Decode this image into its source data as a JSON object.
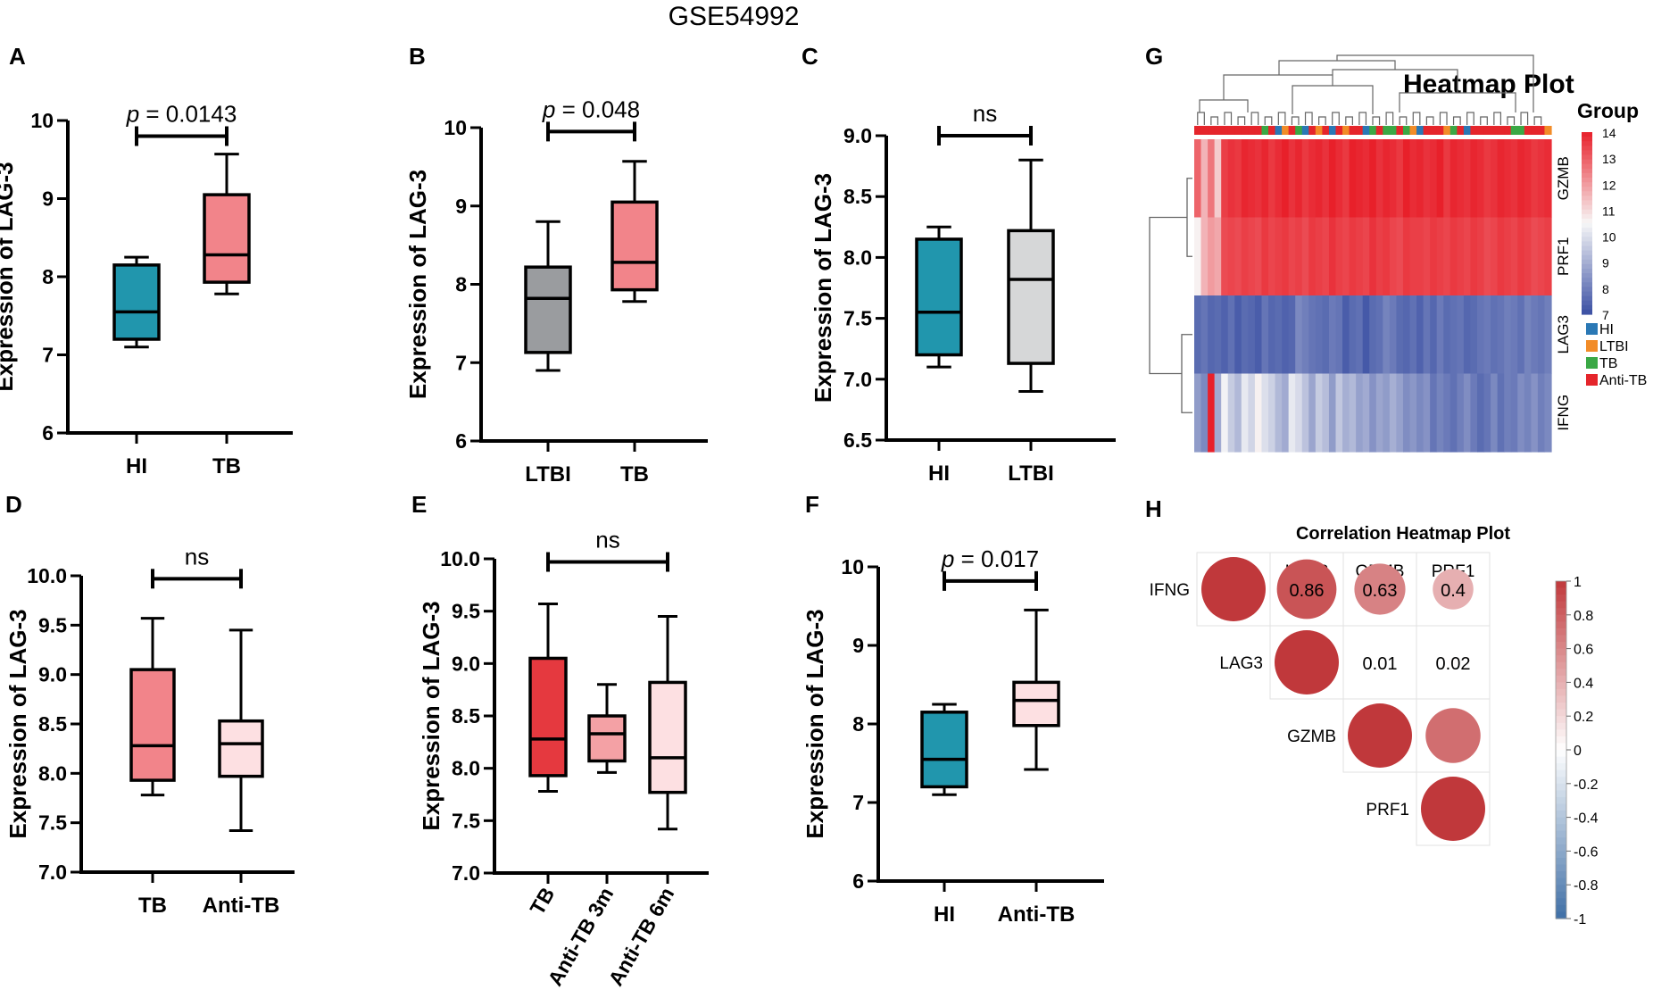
{
  "figure_title": "GSE54992",
  "colors": {
    "HI": "#2196ad",
    "TB": "#f2848a",
    "LTBI_dark": "#9a9c9f",
    "LTBI_light": "#d6d7d8",
    "Anti_TB": "#fde0e2",
    "TB_red": "#e5393f",
    "Anti_TB_3m": "#f4a1a5",
    "heat_high": "#e8202a",
    "heat_mid": "#f7f7f7",
    "heat_low": "#3a4fa3",
    "corr_pos": "#c0383b",
    "corr_neg": "#3f6fa6"
  },
  "chart_data": [
    {
      "panel": "A",
      "type": "box",
      "ylabel": "Expression of LAG-3",
      "ylim": [
        6,
        10
      ],
      "yticks": [
        "6",
        "7",
        "8",
        "9",
        "10"
      ],
      "categories": [
        "HI",
        "TB"
      ],
      "boxes": [
        {
          "min": 7.1,
          "q1": 7.2,
          "median": 7.55,
          "q3": 8.15,
          "max": 8.25,
          "color": "#2196ad"
        },
        {
          "min": 7.78,
          "q1": 7.93,
          "median": 8.28,
          "q3": 9.05,
          "max": 9.57,
          "color": "#f2848a"
        }
      ],
      "significance": {
        "from": 0,
        "to": 1,
        "y": 9.8,
        "label": "p = 0.0143",
        "italic_p": true
      }
    },
    {
      "panel": "B",
      "type": "box",
      "ylabel": "Expression of LAG-3",
      "ylim": [
        6,
        10
      ],
      "yticks": [
        "6",
        "7",
        "8",
        "9",
        "10"
      ],
      "categories": [
        "LTBI",
        "TB"
      ],
      "boxes": [
        {
          "min": 6.9,
          "q1": 7.13,
          "median": 7.82,
          "q3": 8.22,
          "max": 8.8,
          "color": "#9a9c9f"
        },
        {
          "min": 7.78,
          "q1": 7.93,
          "median": 8.28,
          "q3": 9.05,
          "max": 9.57,
          "color": "#f2848a"
        }
      ],
      "significance": {
        "from": 0,
        "to": 1,
        "y": 9.95,
        "label": "p = 0.048",
        "italic_p": true
      }
    },
    {
      "panel": "C",
      "type": "box",
      "ylabel": "Expression of LAG-3",
      "ylim": [
        6.5,
        9.0
      ],
      "yticks": [
        "6.5",
        "7.0",
        "7.5",
        "8.0",
        "8.5",
        "9.0"
      ],
      "categories": [
        "HI",
        "LTBI"
      ],
      "boxes": [
        {
          "min": 7.1,
          "q1": 7.2,
          "median": 7.55,
          "q3": 8.15,
          "max": 8.25,
          "color": "#2196ad"
        },
        {
          "min": 6.9,
          "q1": 7.13,
          "median": 7.82,
          "q3": 8.22,
          "max": 8.8,
          "color": "#d6d7d8"
        }
      ],
      "significance": {
        "from": 0,
        "to": 1,
        "y": 9.0,
        "label": "ns",
        "italic_p": false
      }
    },
    {
      "panel": "D",
      "type": "box",
      "ylabel": "Expression of LAG-3",
      "ylim": [
        7.0,
        10.0
      ],
      "yticks": [
        "7.0",
        "7.5",
        "8.0",
        "8.5",
        "9.0",
        "9.5",
        "10.0"
      ],
      "categories": [
        "TB",
        "Anti-TB"
      ],
      "boxes": [
        {
          "min": 7.78,
          "q1": 7.93,
          "median": 8.28,
          "q3": 9.05,
          "max": 9.57,
          "color": "#f2848a"
        },
        {
          "min": 7.42,
          "q1": 7.97,
          "median": 8.3,
          "q3": 8.53,
          "max": 9.45,
          "color": "#fde0e2"
        }
      ],
      "significance": {
        "from": 0,
        "to": 1,
        "y": 9.97,
        "label": "ns",
        "italic_p": false
      }
    },
    {
      "panel": "E",
      "type": "box",
      "ylabel": "Expression of LAG-3",
      "ylim": [
        7.0,
        10.0
      ],
      "yticks": [
        "7.0",
        "7.5",
        "8.0",
        "8.5",
        "9.0",
        "9.5",
        "10.0"
      ],
      "categories": [
        "TB",
        "Anti-TB 3m",
        "Anti-TB 6m"
      ],
      "rotated_labels": true,
      "boxes": [
        {
          "min": 7.78,
          "q1": 7.93,
          "median": 8.28,
          "q3": 9.05,
          "max": 9.57,
          "color": "#e5393f"
        },
        {
          "min": 7.96,
          "q1": 8.07,
          "median": 8.33,
          "q3": 8.5,
          "max": 8.8,
          "color": "#f4a1a5"
        },
        {
          "min": 7.42,
          "q1": 7.77,
          "median": 8.1,
          "q3": 8.82,
          "max": 9.45,
          "color": "#fde0e2"
        }
      ],
      "significance": {
        "from": 0,
        "to": 2,
        "y": 9.97,
        "label": "ns",
        "italic_p": false
      }
    },
    {
      "panel": "F",
      "type": "box",
      "ylabel": "Expression of LAG-3",
      "ylim": [
        6,
        10
      ],
      "yticks": [
        "6",
        "7",
        "8",
        "9",
        "10"
      ],
      "categories": [
        "HI",
        "Anti-TB"
      ],
      "boxes": [
        {
          "min": 7.1,
          "q1": 7.2,
          "median": 7.55,
          "q3": 8.15,
          "max": 8.25,
          "color": "#2196ad"
        },
        {
          "min": 7.42,
          "q1": 7.98,
          "median": 8.3,
          "q3": 8.53,
          "max": 9.45,
          "color": "#fde0e2"
        }
      ],
      "significance": {
        "from": 0,
        "to": 1,
        "y": 9.82,
        "label": "p = 0.017",
        "italic_p": true
      }
    },
    {
      "panel": "G",
      "type": "heatmap",
      "title": "Heatmap Plot",
      "rows": [
        "GZMB",
        "PRF1",
        "LAG3",
        "IFNG"
      ],
      "group_legend_title": "Group",
      "groups": [
        {
          "name": "HI",
          "color": "#2a78b5"
        },
        {
          "name": "LTBI",
          "color": "#f28c28"
        },
        {
          "name": "TB",
          "color": "#3aa845"
        },
        {
          "name": "Anti-TB",
          "color": "#e5252b"
        }
      ],
      "color_scale_ticks": [
        "14",
        "13",
        "12",
        "11",
        "10",
        "9",
        "8",
        "7"
      ],
      "color_range": [
        7,
        14
      ],
      "column_groups": [
        3,
        3,
        3,
        3,
        3,
        3,
        3,
        3,
        3,
        3,
        2,
        3,
        0,
        1,
        3,
        2,
        0,
        3,
        1,
        3,
        0,
        3,
        1,
        3,
        3,
        0,
        2,
        3,
        2,
        2,
        3,
        2,
        1,
        0,
        3,
        3,
        3,
        1,
        2,
        3,
        0,
        3,
        3,
        3,
        3,
        3,
        3,
        2,
        2,
        3,
        3,
        3,
        1
      ],
      "values": {
        "GZMB": [
          12.9,
          11.6,
          12.6,
          11.2,
          13.5,
          13.7,
          13.6,
          13.9,
          13.8,
          13.7,
          13.9,
          13.6,
          13.8,
          14.0,
          13.7,
          13.9,
          13.6,
          13.8,
          13.9,
          13.7,
          14.1,
          13.8,
          13.6,
          14.0,
          13.9,
          13.8,
          14.2,
          13.7,
          13.9,
          13.8,
          13.6,
          14.0,
          13.8,
          13.9,
          13.7,
          13.8,
          14.0,
          13.6,
          13.9,
          13.8,
          13.7,
          13.9,
          13.8,
          13.6,
          13.7,
          13.9,
          13.8,
          13.7,
          13.9,
          13.8,
          13.6,
          13.7,
          13.8
        ],
        "PRF1": [
          10.6,
          11.6,
          12.0,
          11.8,
          13.3,
          13.4,
          13.3,
          13.5,
          13.4,
          13.3,
          13.6,
          13.4,
          13.5,
          13.6,
          13.4,
          13.5,
          13.3,
          13.6,
          13.5,
          13.4,
          13.7,
          13.5,
          13.4,
          13.6,
          13.5,
          13.4,
          13.7,
          13.5,
          13.6,
          13.4,
          13.3,
          13.6,
          13.5,
          13.5,
          13.4,
          13.6,
          13.5,
          13.4,
          13.6,
          13.5,
          13.4,
          13.6,
          13.5,
          13.3,
          13.4,
          13.6,
          13.5,
          13.4,
          13.6,
          13.5,
          13.3,
          13.4,
          13.5
        ],
        "LAG3": [
          7.6,
          7.8,
          7.5,
          7.6,
          7.4,
          7.7,
          7.3,
          7.6,
          7.5,
          7.3,
          7.8,
          7.5,
          7.6,
          7.4,
          7.5,
          8.2,
          8.0,
          7.8,
          7.7,
          7.6,
          7.9,
          7.8,
          7.3,
          7.6,
          7.7,
          7.2,
          7.6,
          7.7,
          8.1,
          7.9,
          7.6,
          7.5,
          7.7,
          7.4,
          7.8,
          7.5,
          7.9,
          7.6,
          7.7,
          7.8,
          7.5,
          7.6,
          7.8,
          7.9,
          7.7,
          7.8,
          8.0,
          7.9,
          7.7,
          8.1,
          7.9,
          7.8,
          8.0
        ],
        "IFNG": [
          8.6,
          8.2,
          14.2,
          8.9,
          10.4,
          9.6,
          9.2,
          10.2,
          9.8,
          10.6,
          10.0,
          9.7,
          9.2,
          8.9,
          10.2,
          9.9,
          9.4,
          8.8,
          9.6,
          9.3,
          8.6,
          9.5,
          9.0,
          9.2,
          8.7,
          8.9,
          8.4,
          8.8,
          8.6,
          9.0,
          8.7,
          8.3,
          8.5,
          8.2,
          8.4,
          7.8,
          8.1,
          7.9,
          7.7,
          8.0,
          8.3,
          7.9,
          7.6,
          7.8,
          8.2,
          7.7,
          8.0,
          7.9,
          8.3,
          8.1,
          8.4,
          8.0,
          8.2
        ]
      },
      "row_dendrogram_pairs": [
        [
          "GZMB",
          "PRF1"
        ],
        [
          "LAG3",
          "IFNG"
        ]
      ]
    },
    {
      "panel": "H",
      "type": "correlation",
      "title": "Correlation Heatmap Plot",
      "variables": [
        "IFNG",
        "LAG3",
        "GZMB",
        "PRF1"
      ],
      "matrix": [
        [
          1,
          0.86,
          0.63,
          0.4
        ],
        [
          0.86,
          1,
          0.01,
          0.02
        ],
        [
          0.63,
          0.01,
          1,
          0.73
        ],
        [
          0.4,
          0.02,
          0.73,
          1
        ]
      ],
      "upper_labels": [
        {
          "row": 0,
          "col": 1,
          "label": "0.86"
        },
        {
          "row": 0,
          "col": 2,
          "label": "0.63"
        },
        {
          "row": 0,
          "col": 3,
          "label": "0.4"
        },
        {
          "row": 1,
          "col": 2,
          "label": "0.01"
        },
        {
          "row": 1,
          "col": 3,
          "label": "0.02"
        }
      ],
      "colorbar_ticks": [
        "1",
        "0.8",
        "0.6",
        "0.4",
        "0.2",
        "0",
        "-0.2",
        "-0.4",
        "-0.6",
        "-0.8",
        "-1"
      ],
      "range": [
        -1,
        1
      ]
    }
  ]
}
